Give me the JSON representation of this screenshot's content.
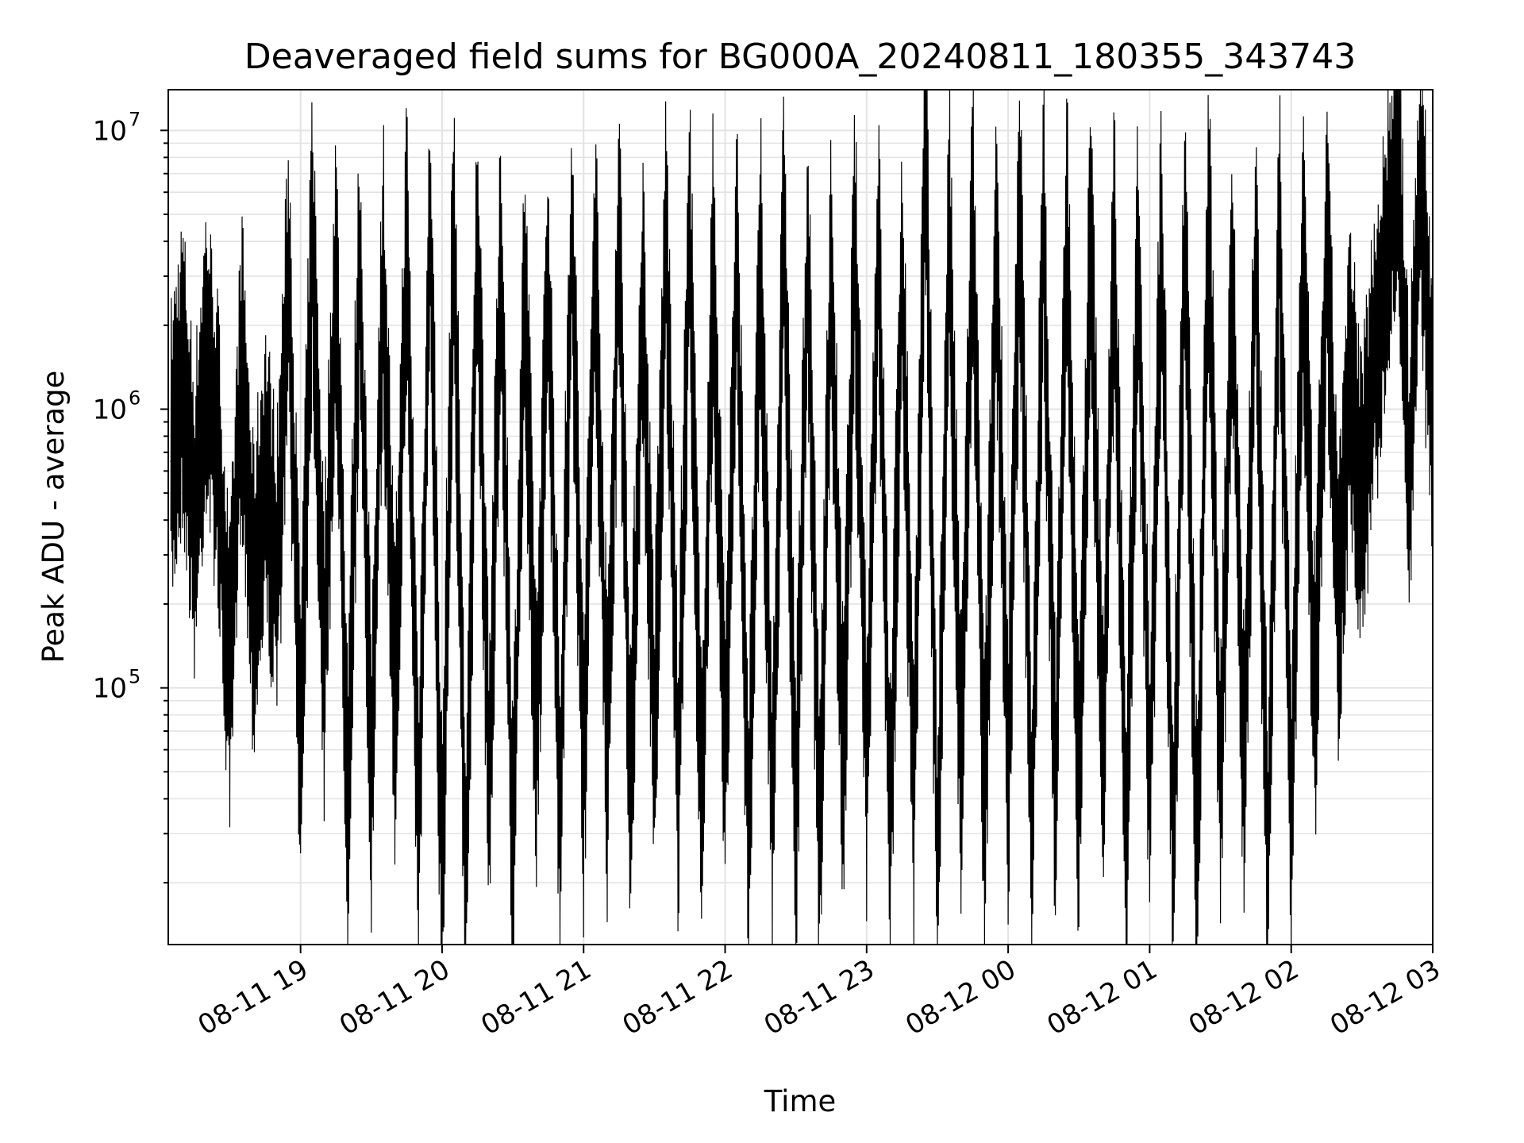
{
  "chart_data": {
    "type": "line",
    "title": "Deaveraged field sums for BG000A_20240811_180355_343743",
    "xlabel": "Time",
    "ylabel": "Peak ADU - average",
    "xlim": [
      "2024-08-11 18:03:55",
      "2024-08-12 03:00:00"
    ],
    "ylim": [
      12000,
      14000000
    ],
    "yscale": "log",
    "grid": true,
    "line_color": "#000000",
    "x_ticks": [
      "08-11 19",
      "08-11 20",
      "08-11 21",
      "08-11 22",
      "08-11 23",
      "08-12 00",
      "08-12 01",
      "08-12 02",
      "08-12 03"
    ],
    "y_ticks": [
      {
        "base": "10",
        "exp": "5",
        "value": 100000
      },
      {
        "base": "10",
        "exp": "6",
        "value": 1000000
      },
      {
        "base": "10",
        "exp": "7",
        "value": 10000000
      }
    ],
    "series": [
      {
        "values": [
          [
            "2024-08-11 18:05",
            650000
          ],
          [
            "2024-08-11 18:10",
            1400000
          ],
          [
            "2024-08-11 18:15",
            400000
          ],
          [
            "2024-08-11 18:20",
            1600000
          ],
          [
            "2024-08-11 18:25",
            700000
          ],
          [
            "2024-08-11 18:30",
            94000
          ],
          [
            "2024-08-11 18:35",
            1500000
          ],
          [
            "2024-08-11 18:40",
            200000
          ],
          [
            "2024-08-11 18:45",
            600000
          ],
          [
            "2024-08-11 18:50",
            250000
          ],
          [
            "2024-08-11 18:55",
            3000000
          ],
          [
            "2024-08-11 19:00",
            60000
          ],
          [
            "2024-08-11 19:05",
            4500000
          ],
          [
            "2024-08-11 19:10",
            120000
          ],
          [
            "2024-08-11 19:15",
            3200000
          ],
          [
            "2024-08-11 19:20",
            40000
          ],
          [
            "2024-08-11 19:25",
            3400000
          ],
          [
            "2024-08-11 19:30",
            45000
          ],
          [
            "2024-08-11 19:35",
            3300000
          ],
          [
            "2024-08-11 19:40",
            80000
          ],
          [
            "2024-08-11 19:45",
            4000000
          ],
          [
            "2024-08-11 19:50",
            30000
          ],
          [
            "2024-08-11 19:55",
            4600000
          ],
          [
            "2024-08-11 20:00",
            18000
          ],
          [
            "2024-08-11 20:05",
            5000000
          ],
          [
            "2024-08-11 20:10",
            17000
          ],
          [
            "2024-08-11 20:15",
            4400000
          ],
          [
            "2024-08-11 20:20",
            45000
          ],
          [
            "2024-08-11 20:25",
            3500000
          ],
          [
            "2024-08-11 20:30",
            23000
          ],
          [
            "2024-08-11 20:35",
            2800000
          ],
          [
            "2024-08-11 20:40",
            60000
          ],
          [
            "2024-08-11 20:45",
            3000000
          ],
          [
            "2024-08-11 20:50",
            31000
          ],
          [
            "2024-08-11 20:55",
            4600000
          ],
          [
            "2024-08-11 21:00",
            45000
          ],
          [
            "2024-08-11 21:05",
            3800000
          ],
          [
            "2024-08-11 21:10",
            55000
          ],
          [
            "2024-08-11 21:15",
            4400000
          ],
          [
            "2024-08-11 21:20",
            40000
          ],
          [
            "2024-08-11 21:25",
            2800000
          ],
          [
            "2024-08-11 21:30",
            60000
          ],
          [
            "2024-08-11 21:35",
            4300000
          ],
          [
            "2024-08-11 21:40",
            40000
          ],
          [
            "2024-08-11 21:45",
            4600000
          ],
          [
            "2024-08-11 21:50",
            30000
          ],
          [
            "2024-08-11 21:55",
            3600000
          ],
          [
            "2024-08-11 22:00",
            55000
          ],
          [
            "2024-08-11 22:05",
            3200000
          ],
          [
            "2024-08-11 22:10",
            28000
          ],
          [
            "2024-08-11 22:15",
            3400000
          ],
          [
            "2024-08-11 22:20",
            34000
          ],
          [
            "2024-08-11 22:25",
            4800000
          ],
          [
            "2024-08-11 22:30",
            30000
          ],
          [
            "2024-08-11 22:35",
            3600000
          ],
          [
            "2024-08-11 22:40",
            26000
          ],
          [
            "2024-08-11 22:45",
            3100000
          ],
          [
            "2024-08-11 22:50",
            45000
          ],
          [
            "2024-08-11 22:55",
            4000000
          ],
          [
            "2024-08-11 23:00",
            50000
          ],
          [
            "2024-08-11 23:05",
            3900000
          ],
          [
            "2024-08-11 23:10",
            28000
          ],
          [
            "2024-08-11 23:15",
            3500000
          ],
          [
            "2024-08-11 23:20",
            38000
          ],
          [
            "2024-08-11 23:25",
            10000000
          ],
          [
            "2024-08-11 23:30",
            20000
          ],
          [
            "2024-08-11 23:35",
            4600000
          ],
          [
            "2024-08-11 23:40",
            45000
          ],
          [
            "2024-08-11 23:45",
            5000000
          ],
          [
            "2024-08-11 23:50",
            32000
          ],
          [
            "2024-08-11 23:55",
            4200000
          ],
          [
            "2024-08-12 00:00",
            50000
          ],
          [
            "2024-08-12 00:05",
            5200000
          ],
          [
            "2024-08-12 00:10",
            28000
          ],
          [
            "2024-08-12 00:15",
            4600000
          ],
          [
            "2024-08-12 00:20",
            40000
          ],
          [
            "2024-08-12 00:25",
            4500000
          ],
          [
            "2024-08-12 00:30",
            35000
          ],
          [
            "2024-08-12 00:35",
            4600000
          ],
          [
            "2024-08-12 00:40",
            50000
          ],
          [
            "2024-08-12 00:45",
            3800000
          ],
          [
            "2024-08-12 00:50",
            25000
          ],
          [
            "2024-08-12 00:55",
            3900000
          ],
          [
            "2024-08-12 01:00",
            45000
          ],
          [
            "2024-08-12 01:05",
            4100000
          ],
          [
            "2024-08-12 01:10",
            24000
          ],
          [
            "2024-08-12 01:15",
            4600000
          ],
          [
            "2024-08-12 01:20",
            20000
          ],
          [
            "2024-08-12 01:25",
            5200000
          ],
          [
            "2024-08-12 01:30",
            40000
          ],
          [
            "2024-08-12 01:35",
            3300000
          ],
          [
            "2024-08-12 01:40",
            45000
          ],
          [
            "2024-08-12 01:45",
            3800000
          ],
          [
            "2024-08-12 01:50",
            22000
          ],
          [
            "2024-08-12 01:55",
            4600000
          ],
          [
            "2024-08-12 02:00",
            30000
          ],
          [
            "2024-08-12 02:05",
            4100000
          ],
          [
            "2024-08-12 02:10",
            80000
          ],
          [
            "2024-08-12 02:15",
            3700000
          ],
          [
            "2024-08-12 02:20",
            200000
          ],
          [
            "2024-08-12 02:25",
            1300000
          ],
          [
            "2024-08-12 02:30",
            450000
          ],
          [
            "2024-08-12 02:35",
            1500000
          ],
          [
            "2024-08-12 02:40",
            3000000
          ],
          [
            "2024-08-12 02:45",
            8800000
          ],
          [
            "2024-08-12 02:50",
            500000
          ],
          [
            "2024-08-12 02:55",
            7200000
          ],
          [
            "2024-08-12 03:00",
            800000
          ]
        ]
      }
    ]
  }
}
